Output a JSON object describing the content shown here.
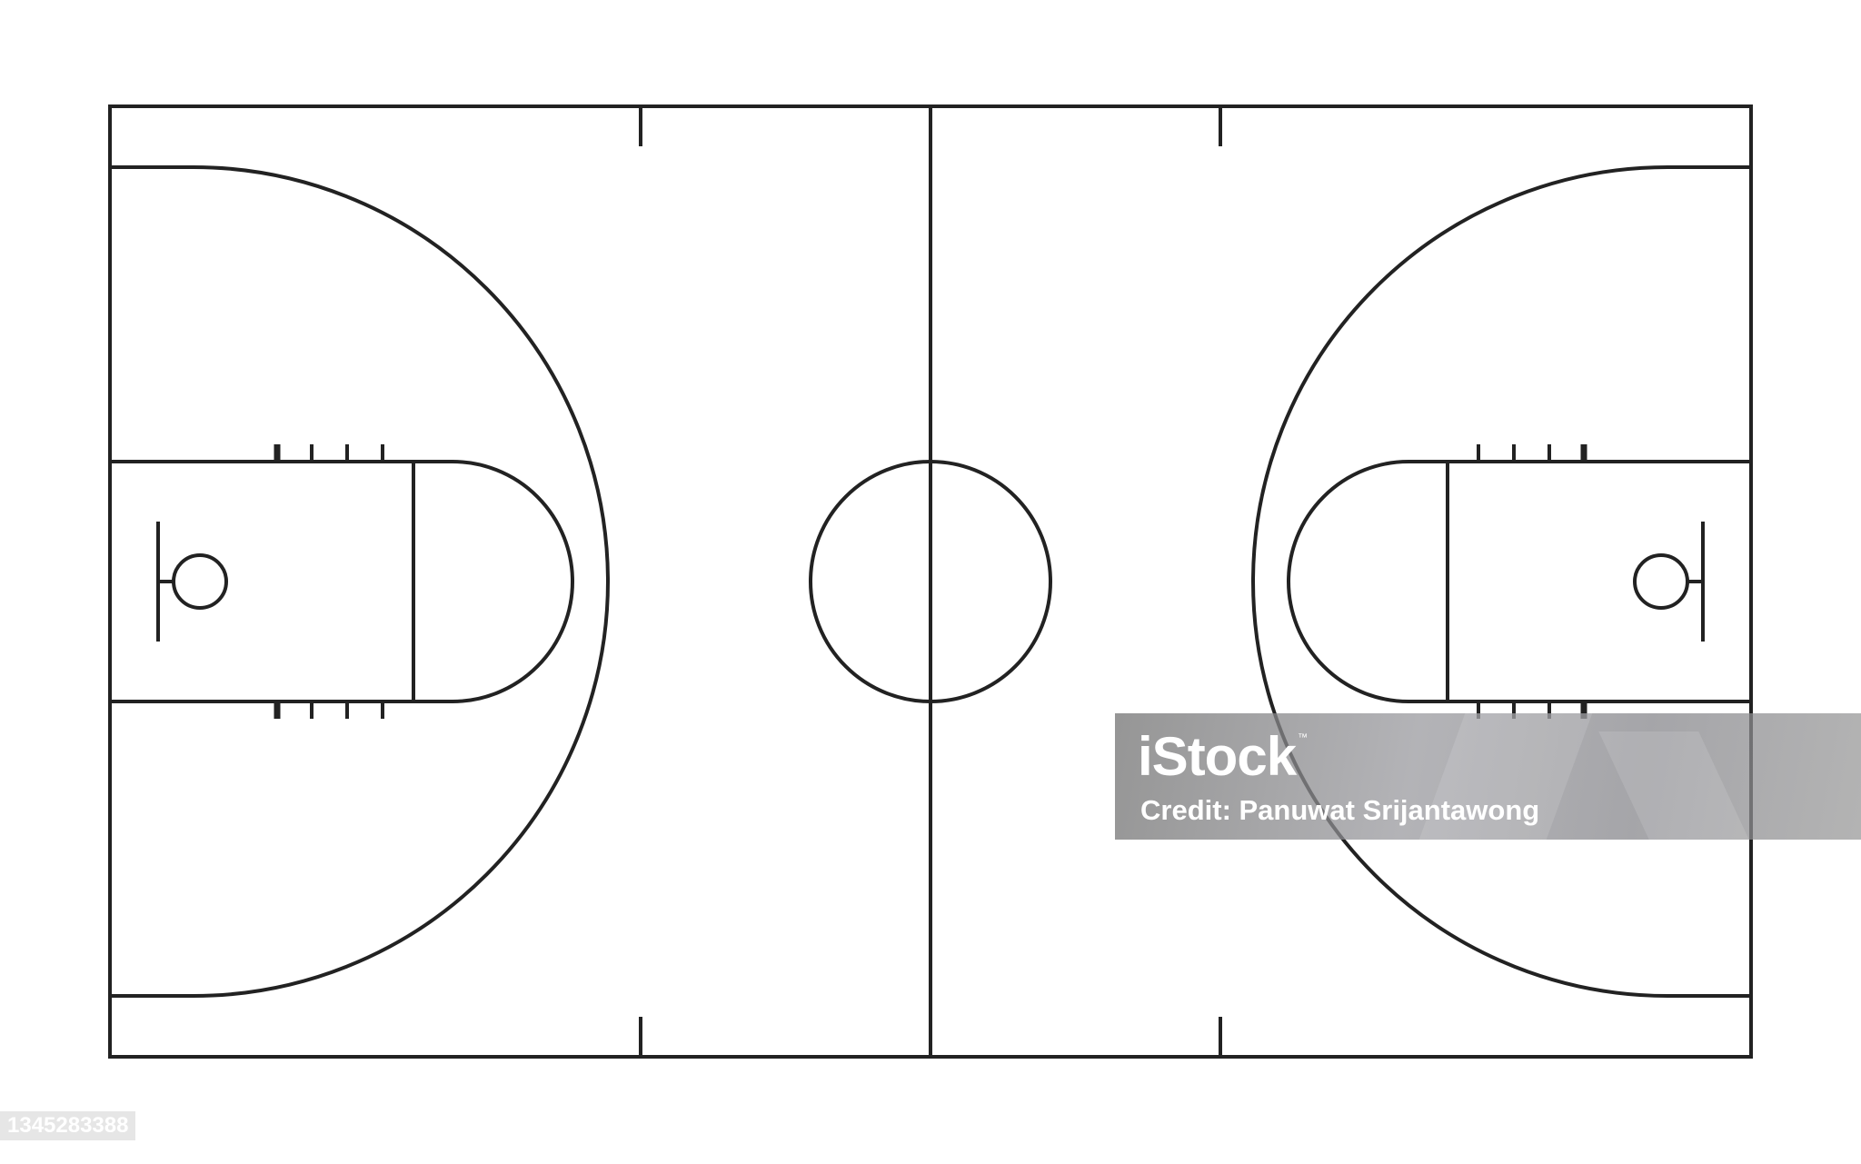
{
  "image": {
    "subject": "basketball-court-outline",
    "line_color": "#222222",
    "background_color": "#ffffff"
  },
  "watermark": {
    "brand": "iStock",
    "trademark": "™",
    "credit": "Credit: Panuwat Srijantawong"
  },
  "image_id": "1345283388"
}
